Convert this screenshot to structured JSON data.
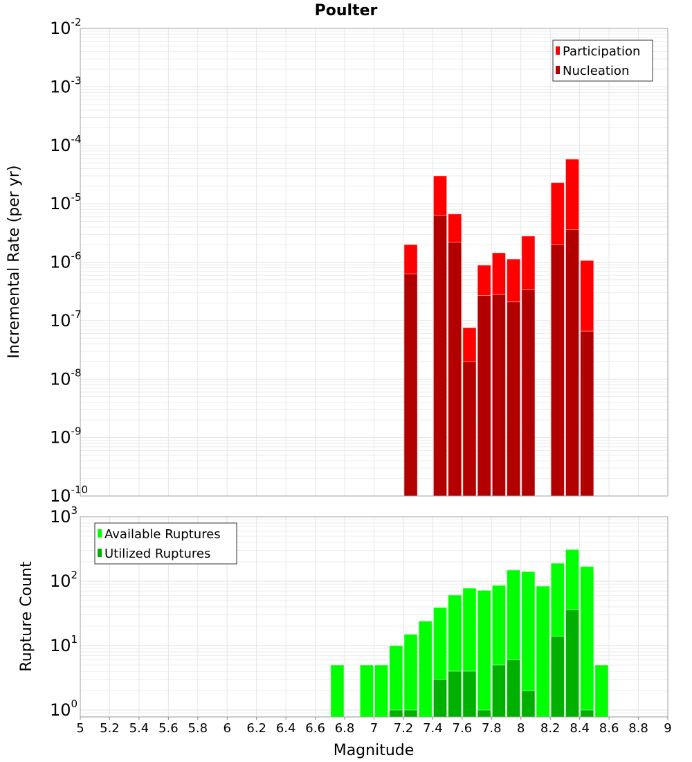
{
  "chart_data": [
    {
      "type": "bar",
      "title": "Poulter",
      "xlabel": "Magnitude",
      "ylabel": "Incremental Rate (per yr)",
      "yscale": "log",
      "ylim": [
        1e-10,
        0.01
      ],
      "xlim": [
        5,
        9
      ],
      "y_tick_exponents": [
        -10,
        -9,
        -8,
        -7,
        -6,
        -5,
        -4,
        -3,
        -2
      ],
      "grid": true,
      "legend_position": "top-right",
      "x": [
        7.25,
        7.45,
        7.55,
        7.65,
        7.75,
        7.85,
        7.95,
        8.05,
        8.25,
        8.35,
        8.45
      ],
      "series": [
        {
          "name": "Participation",
          "color": "#ff0000",
          "values": [
            2e-06,
            3e-05,
            6.7e-06,
            7.6e-08,
            8.9e-07,
            1.45e-06,
            1.13e-06,
            2.8e-06,
            2.3e-05,
            5.8e-05,
            1.07e-06
          ]
        },
        {
          "name": "Nucleation",
          "color": "#b20000",
          "values": [
            6.3e-07,
            6.3e-06,
            2.2e-06,
            2e-08,
            2.7e-07,
            2.8e-07,
            2.1e-07,
            3.4e-07,
            2e-06,
            3.6e-06,
            6.6e-08
          ]
        }
      ]
    },
    {
      "type": "bar",
      "xlabel": "Magnitude",
      "ylabel": "Rupture Count",
      "yscale": "log",
      "ylim": [
        0.78,
        1000
      ],
      "xlim": [
        5,
        9
      ],
      "y_tick_exponents": [
        0,
        1,
        2,
        3
      ],
      "x_ticks": [
        "5",
        "5.2",
        "5.4",
        "5.6",
        "5.8",
        "6",
        "6.2",
        "6.4",
        "6.6",
        "6.8",
        "7",
        "7.2",
        "7.4",
        "7.6",
        "7.8",
        "8",
        "8.2",
        "8.4",
        "8.6",
        "8.8",
        "9"
      ],
      "grid": true,
      "legend_position": "top-left",
      "x": [
        6.75,
        6.95,
        7.05,
        7.15,
        7.25,
        7.35,
        7.45,
        7.55,
        7.65,
        7.75,
        7.85,
        7.95,
        8.05,
        8.15,
        8.25,
        8.35,
        8.45,
        8.55
      ],
      "series": [
        {
          "name": "Available Ruptures",
          "color": "#00ff00",
          "values": [
            5,
            5,
            5,
            10,
            15,
            24,
            39,
            61,
            78,
            72,
            86,
            149,
            141,
            84,
            190,
            310,
            169,
            5
          ]
        },
        {
          "name": "Utilized Ruptures",
          "color": "#00b000",
          "values": [
            0,
            0,
            0,
            1,
            1,
            0,
            3,
            4,
            4,
            1,
            5,
            6,
            2,
            0,
            14,
            36,
            1,
            0
          ]
        }
      ]
    }
  ]
}
